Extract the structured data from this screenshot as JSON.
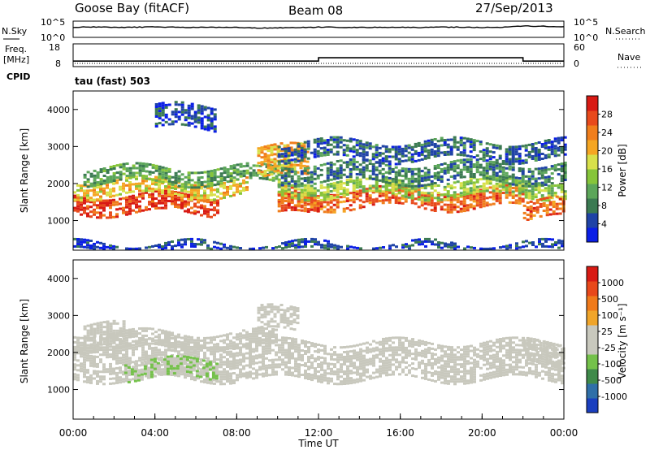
{
  "header": {
    "station": "Goose Bay (fitACF)",
    "beam": "Beam 08",
    "date": "27/Sep/2013"
  },
  "left_labels": {
    "nsky": "N.Sky",
    "freq_line1": "Freq.",
    "freq_line2": "[MHz]",
    "cpid": "CPID"
  },
  "right_labels": {
    "nsearch": "N.Search",
    "nave": "Nave"
  },
  "program_label": "tau (fast) 503",
  "colors": {
    "power_scale": [
      "#0a1ee6",
      "#1f43a6",
      "#3b7a52",
      "#5ca65a",
      "#86c53a",
      "#d8e04a",
      "#f5a623",
      "#f07e1c",
      "#e84a1c",
      "#d81a14"
    ],
    "velocity_scale": [
      "#1a3fbf",
      "#2f6fa8",
      "#3f8a4a",
      "#74c14a",
      "#c8c8bd",
      "#c8c8bd",
      "#f0a52a",
      "#f07a1a",
      "#e8481a",
      "#d81a14"
    ],
    "ground_scatter": "#c8c8bd"
  },
  "chart_data": [
    {
      "type": "line",
      "name": "noise-panel",
      "y_left_ticks": [
        "10^5",
        "10^0"
      ],
      "y_right_ticks": [
        "10^5",
        "10^0"
      ],
      "series": [
        {
          "name": "N.Sky",
          "x": [
            0,
            1,
            2,
            3,
            4,
            5,
            6,
            7,
            8,
            9,
            10,
            11,
            12,
            13,
            14,
            15,
            16,
            17,
            18,
            19,
            20,
            21,
            22,
            23,
            24
          ],
          "values": [
            3.2,
            3.3,
            3.1,
            3.2,
            3.3,
            3.2,
            3.1,
            3.2,
            3.1,
            2.9,
            3.0,
            3.1,
            3.2,
            3.2,
            3.1,
            3.2,
            3.2,
            3.1,
            3.2,
            3.2,
            3.1,
            3.2,
            3.6,
            3.5,
            3.4
          ]
        }
      ]
    },
    {
      "type": "line",
      "name": "frequency-panel",
      "y_left_ticks": [
        "18",
        "8"
      ],
      "y_right_ticks": [
        "60",
        "0"
      ],
      "series": [
        {
          "name": "Freq. [MHz]",
          "x": [
            0,
            12,
            12,
            22,
            22,
            24
          ],
          "values": [
            10.0,
            10.0,
            11.7,
            11.7,
            10.0,
            10.0
          ]
        }
      ]
    },
    {
      "type": "heatmap",
      "name": "power-panel",
      "xlabel": "",
      "ylabel": "Slant Range [km]",
      "xlim": [
        0,
        24
      ],
      "ylim": [
        200,
        4500
      ],
      "y_ticks": [
        "1000",
        "2000",
        "3000",
        "4000"
      ],
      "colorbar_label": "Power [dB]",
      "colorbar_ticks": [
        "28",
        "24",
        "20",
        "16",
        "12",
        "8",
        "4"
      ],
      "vmin": 0,
      "vmax": 30,
      "bands": [
        {
          "x0": 0.0,
          "x1": 7.0,
          "r_center": 1450,
          "r_halfwidth": 250,
          "value": 26
        },
        {
          "x0": 0.0,
          "x1": 8.5,
          "r_center": 1900,
          "r_halfwidth": 200,
          "value": 18
        },
        {
          "x0": 0.5,
          "x1": 10.0,
          "r_center": 2250,
          "r_halfwidth": 200,
          "value": 10
        },
        {
          "x0": 9.0,
          "x1": 11.5,
          "r_center": 2600,
          "r_halfwidth": 400,
          "value": 20
        },
        {
          "x0": 10.0,
          "x1": 12.0,
          "r_center": 1400,
          "r_halfwidth": 250,
          "value": 26
        },
        {
          "x0": 10.0,
          "x1": 22.0,
          "r_center": 1600,
          "r_halfwidth": 250,
          "value": 24
        },
        {
          "x0": 10.0,
          "x1": 24.0,
          "r_center": 1900,
          "r_halfwidth": 200,
          "value": 14
        },
        {
          "x0": 10.0,
          "x1": 24.0,
          "r_center": 2300,
          "r_halfwidth": 250,
          "value": 8
        },
        {
          "x0": 10.0,
          "x1": 24.0,
          "r_center": 2900,
          "r_halfwidth": 250,
          "value": 6
        },
        {
          "x0": 22.0,
          "x1": 24.0,
          "r_center": 1300,
          "r_halfwidth": 250,
          "value": 24
        },
        {
          "x0": 4.0,
          "x1": 7.0,
          "r_center": 3800,
          "r_halfwidth": 300,
          "value": 4
        },
        {
          "x0": 0.0,
          "x1": 24.0,
          "r_center": 300,
          "r_halfwidth": 100,
          "value": 4
        }
      ]
    },
    {
      "type": "heatmap",
      "name": "velocity-panel",
      "xlabel": "Time UT",
      "ylabel": "Slant Range [km]",
      "xlim": [
        0,
        24
      ],
      "ylim": [
        200,
        4500
      ],
      "x_ticks": [
        "00:00",
        "04:00",
        "08:00",
        "12:00",
        "16:00",
        "20:00",
        "00:00"
      ],
      "y_ticks": [
        "1000",
        "2000",
        "3000",
        "4000"
      ],
      "colorbar_label": "Velocity [m s⁻¹]",
      "colorbar_ticks": [
        "1000",
        "500",
        "100",
        "25",
        "-25",
        "-100",
        "-500",
        "-1000"
      ],
      "vmin": -1000,
      "vmax": 1000,
      "bands": [
        {
          "x0": 0.0,
          "x1": 24.0,
          "r_center": 1800,
          "r_halfwidth": 500,
          "value": 0
        },
        {
          "x0": 0.0,
          "x1": 10.0,
          "r_center": 2350,
          "r_halfwidth": 200,
          "value": 0
        },
        {
          "x0": 2.5,
          "x1": 7.0,
          "r_center": 1550,
          "r_halfwidth": 250,
          "value": -200
        },
        {
          "x0": 0.5,
          "x1": 2.5,
          "r_center": 2450,
          "r_halfwidth": 300,
          "value": 150
        },
        {
          "x0": 9.0,
          "x1": 11.0,
          "r_center": 2900,
          "r_halfwidth": 300,
          "value": 0
        },
        {
          "x0": 22.0,
          "x1": 24.0,
          "r_center": 2000,
          "r_halfwidth": 300,
          "value": 150
        }
      ]
    }
  ]
}
